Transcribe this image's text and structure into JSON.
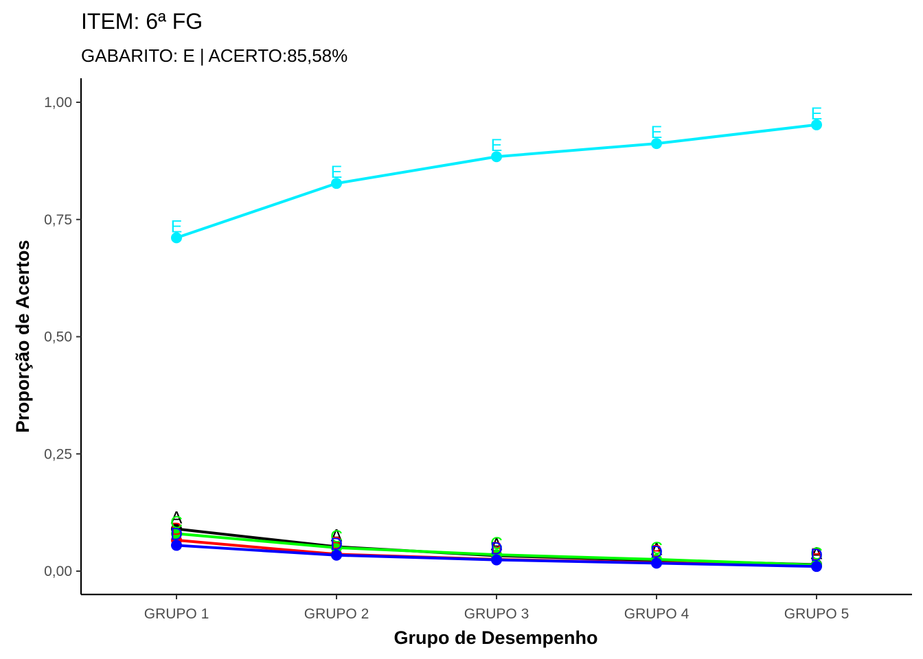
{
  "chart_data": {
    "type": "line",
    "title": "ITEM: 6ª FG",
    "subtitle": "GABARITO: E | ACERTO:85,58%",
    "xlabel": "Grupo de Desempenho",
    "ylabel": "Proporção de Acertos",
    "categories": [
      "GRUPO 1",
      "GRUPO 2",
      "GRUPO 3",
      "GRUPO 4",
      "GRUPO 5"
    ],
    "ylim": [
      -0.048,
      1.05
    ],
    "yticks": [
      0.0,
      0.25,
      0.5,
      0.75,
      1.0
    ],
    "ytick_labels": [
      "0,00",
      "0,25",
      "0,50",
      "0,75",
      "1,00"
    ],
    "grid": false,
    "legend": "none",
    "series": [
      {
        "name": "A",
        "color": "#000000",
        "values": [
          0.09,
          0.052,
          0.033,
          0.023,
          0.014
        ]
      },
      {
        "name": "B",
        "color": "#ff0000",
        "values": [
          0.066,
          0.036,
          0.025,
          0.018,
          0.012
        ]
      },
      {
        "name": "C",
        "color": "#00ff00",
        "values": [
          0.08,
          0.05,
          0.035,
          0.025,
          0.013
        ]
      },
      {
        "name": "D",
        "color": "#0000ff",
        "values": [
          0.055,
          0.034,
          0.024,
          0.017,
          0.01
        ]
      },
      {
        "name": "E",
        "color": "#00eeff",
        "values": [
          0.711,
          0.827,
          0.884,
          0.912,
          0.952
        ]
      }
    ]
  }
}
